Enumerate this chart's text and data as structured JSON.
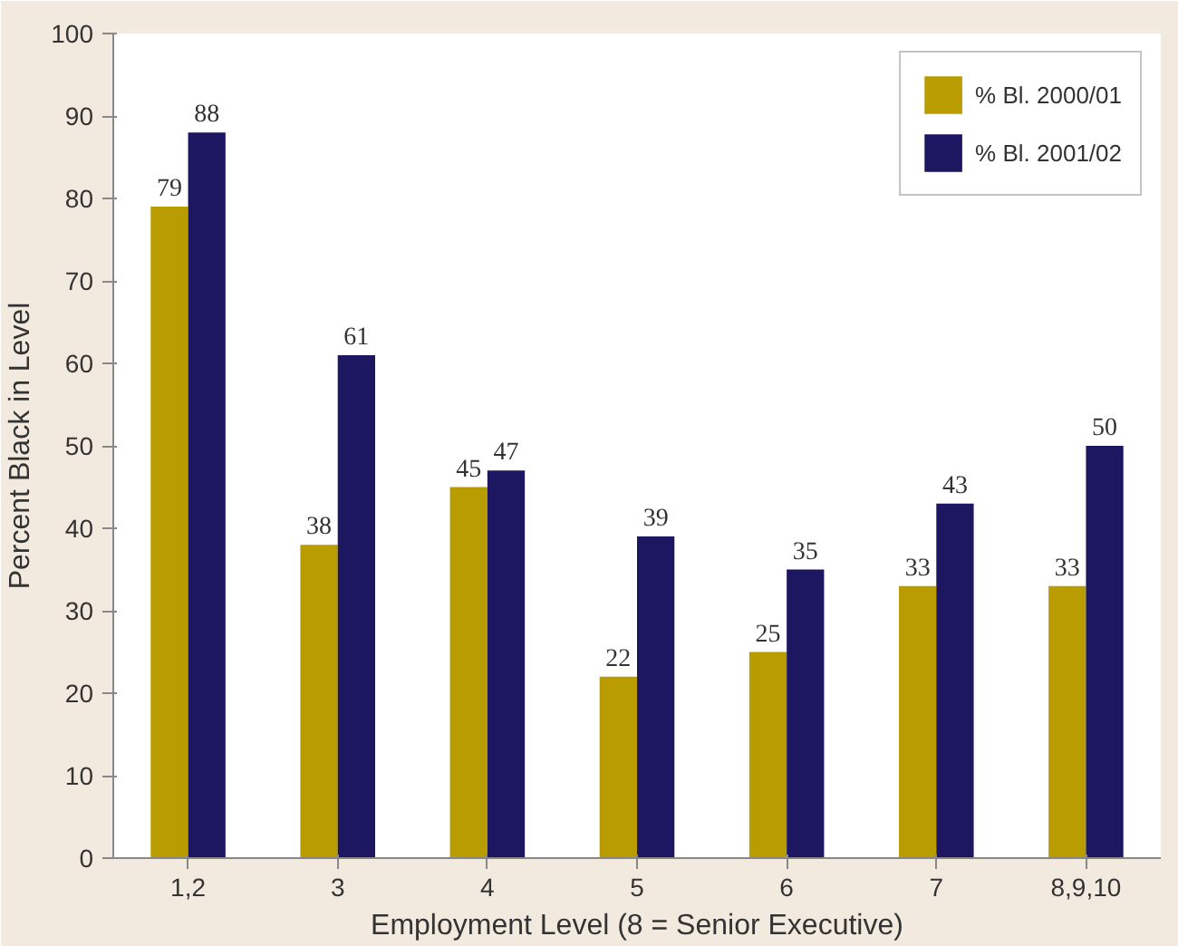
{
  "chart_data": {
    "type": "bar",
    "xlabel": "Employment Level (8 = Senior Executive)",
    "ylabel": "Percent Black in Level",
    "categories": [
      "1,2",
      "3",
      "4",
      "5",
      "6",
      "7",
      "8,9,10"
    ],
    "series": [
      {
        "name": "% Bl. 2000/01",
        "color": "#b89c00",
        "values": [
          79,
          38,
          45,
          22,
          25,
          33,
          33
        ]
      },
      {
        "name": "% Bl. 2001/02",
        "color": "#1c1760",
        "values": [
          88,
          61,
          47,
          39,
          35,
          43,
          50
        ]
      }
    ],
    "ylim": [
      0,
      100
    ],
    "yticks": [
      0,
      10,
      20,
      30,
      40,
      50,
      60,
      70,
      80,
      90,
      100
    ],
    "grid": false,
    "legend": "top right",
    "data_labels": true
  }
}
